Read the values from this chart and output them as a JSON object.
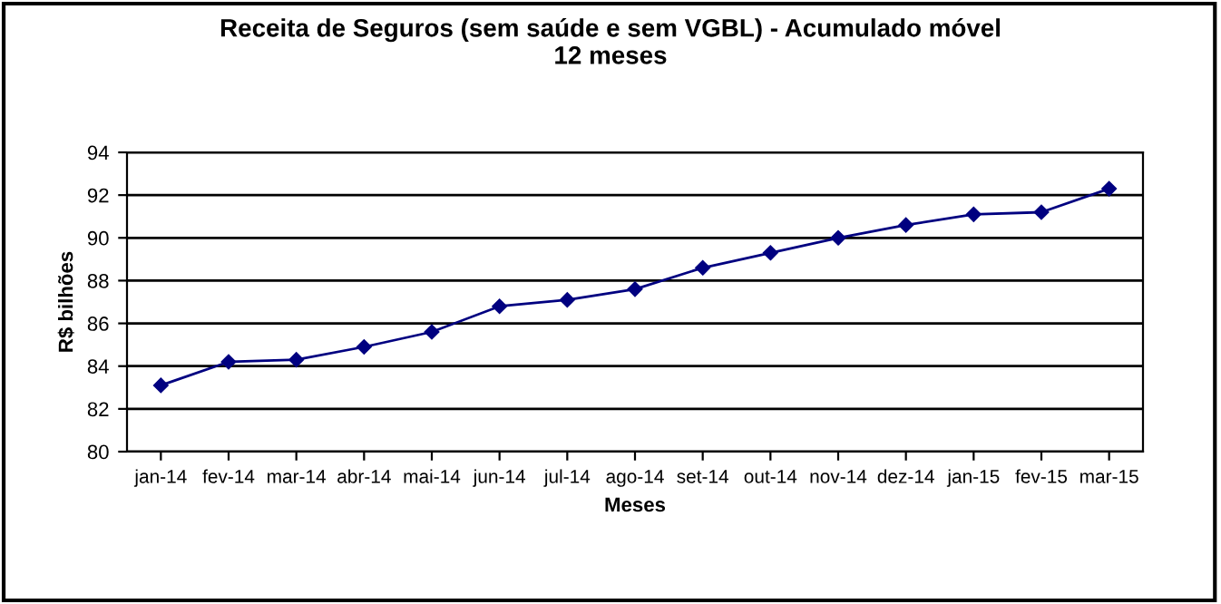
{
  "chart_data": {
    "type": "line",
    "title": "Receita de Seguros (sem saúde e sem VGBL) - Acumulado móvel\n12 meses",
    "xlabel": "Meses",
    "ylabel": "R$ bilhões",
    "categories": [
      "jan-14",
      "fev-14",
      "mar-14",
      "abr-14",
      "mai-14",
      "jun-14",
      "jul-14",
      "ago-14",
      "set-14",
      "out-14",
      "nov-14",
      "dez-14",
      "jan-15",
      "fev-15",
      "mar-15"
    ],
    "series": [
      {
        "color": "#000080",
        "values": [
          83.1,
          84.2,
          84.3,
          84.9,
          85.6,
          86.8,
          87.1,
          87.6,
          88.6,
          89.3,
          90.0,
          90.6,
          91.1,
          91.2,
          92.3
        ]
      }
    ],
    "ylim": [
      80,
      94
    ],
    "yticks": [
      80,
      82,
      84,
      86,
      88,
      90,
      92,
      94
    ],
    "grid": "y",
    "marker": "diamond",
    "line_style": "solid",
    "legend": false
  }
}
